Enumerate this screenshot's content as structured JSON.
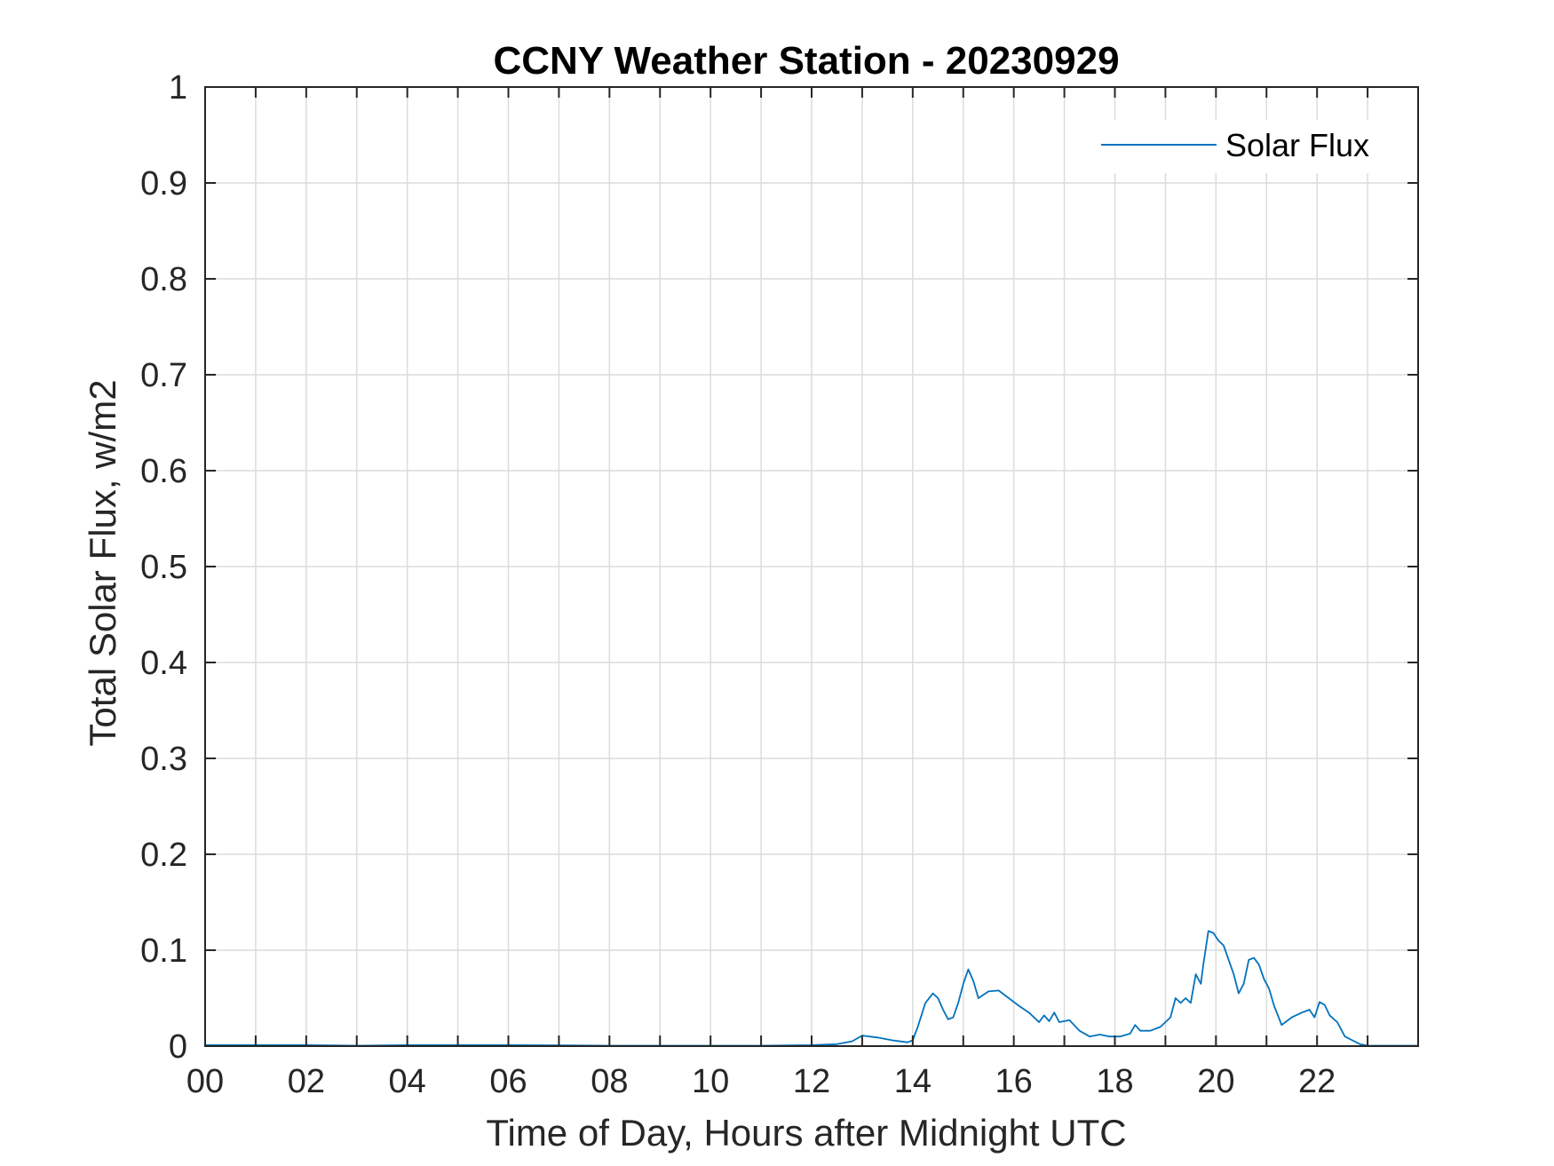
{
  "chart_data": {
    "type": "line",
    "title": "CCNY Weather Station - 20230929",
    "xlabel": "Time of Day, Hours after Midnight UTC",
    "ylabel": "Total Solar Flux, w/m2",
    "xlim": [
      0,
      24
    ],
    "ylim": [
      0,
      1
    ],
    "xticks": [
      0,
      2,
      4,
      6,
      8,
      10,
      12,
      14,
      16,
      18,
      20,
      22
    ],
    "xtick_labels": [
      "00",
      "02",
      "04",
      "06",
      "08",
      "10",
      "12",
      "14",
      "16",
      "18",
      "20",
      "22"
    ],
    "yticks": [
      0,
      0.1,
      0.2,
      0.3,
      0.4,
      0.5,
      0.6,
      0.7,
      0.8,
      0.9,
      1
    ],
    "ytick_labels": [
      "0",
      "0.1",
      "0.2",
      "0.3",
      "0.4",
      "0.5",
      "0.6",
      "0.7",
      "0.8",
      "0.9",
      "1"
    ],
    "grid": true,
    "legend_position": "top-right",
    "series": [
      {
        "name": "Solar Flux",
        "color": "#0072BD",
        "x": [
          0,
          1,
          2,
          3,
          4,
          5,
          6,
          7,
          8,
          9,
          10,
          11,
          12,
          12.5,
          12.8,
          13.0,
          13.3,
          13.6,
          13.9,
          14.0,
          14.1,
          14.25,
          14.4,
          14.5,
          14.6,
          14.7,
          14.8,
          14.9,
          15.0,
          15.1,
          15.2,
          15.3,
          15.5,
          15.7,
          15.9,
          16.1,
          16.3,
          16.5,
          16.6,
          16.7,
          16.8,
          16.9,
          17.1,
          17.3,
          17.5,
          17.7,
          17.9,
          18.1,
          18.3,
          18.4,
          18.5,
          18.7,
          18.9,
          19.1,
          19.2,
          19.3,
          19.4,
          19.5,
          19.6,
          19.7,
          19.75,
          19.85,
          19.95,
          20.05,
          20.15,
          20.25,
          20.35,
          20.45,
          20.55,
          20.65,
          20.75,
          20.85,
          20.95,
          21.05,
          21.15,
          21.3,
          21.5,
          21.7,
          21.85,
          21.95,
          22.05,
          22.15,
          22.25,
          22.4,
          22.55,
          22.7,
          22.85,
          23.0,
          23.5,
          24.0
        ],
        "y": [
          0.001,
          0.001,
          0.001,
          0.0005,
          0.001,
          0.001,
          0.001,
          0.0008,
          0.0005,
          0.0005,
          0.0005,
          0.0005,
          0.001,
          0.002,
          0.005,
          0.011,
          0.009,
          0.006,
          0.004,
          0.006,
          0.02,
          0.045,
          0.055,
          0.05,
          0.038,
          0.028,
          0.03,
          0.045,
          0.065,
          0.08,
          0.068,
          0.05,
          0.057,
          0.058,
          0.05,
          0.042,
          0.035,
          0.025,
          0.032,
          0.026,
          0.035,
          0.025,
          0.027,
          0.016,
          0.01,
          0.012,
          0.01,
          0.01,
          0.013,
          0.022,
          0.016,
          0.016,
          0.02,
          0.03,
          0.05,
          0.045,
          0.05,
          0.045,
          0.075,
          0.065,
          0.085,
          0.12,
          0.118,
          0.11,
          0.105,
          0.09,
          0.075,
          0.055,
          0.065,
          0.09,
          0.092,
          0.085,
          0.07,
          0.06,
          0.042,
          0.022,
          0.03,
          0.035,
          0.038,
          0.03,
          0.046,
          0.043,
          0.032,
          0.025,
          0.01,
          0.006,
          0.002,
          0.0005,
          0.0005,
          0.0005
        ]
      }
    ]
  }
}
